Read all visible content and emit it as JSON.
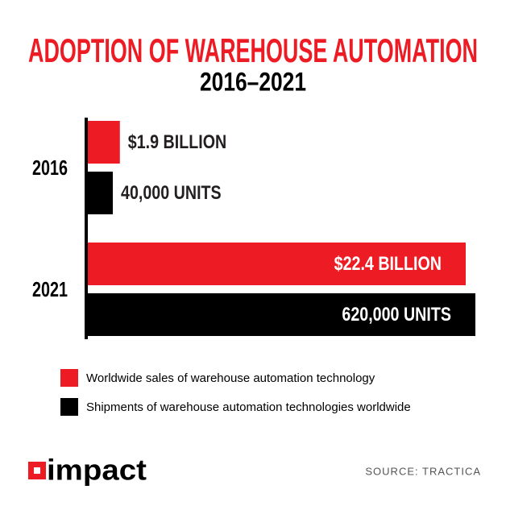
{
  "chart_data": {
    "type": "bar",
    "orientation": "horizontal",
    "title": "ADOPTION OF WAREHOUSE AUTOMATION",
    "subtitle": "2016–2021",
    "categories": [
      "2016",
      "2021"
    ],
    "series": [
      {
        "name": "Worldwide sales of warehouse automation technology",
        "color": "#ed1c24",
        "values": [
          1.9,
          22.4
        ],
        "value_labels": [
          "$1.9 BILLION",
          "$22.4 BILLION"
        ]
      },
      {
        "name": "Shipments of warehouse automation technologies worldwide",
        "color": "#000000",
        "values": [
          40000,
          620000
        ],
        "value_labels": [
          "40,000 UNITS",
          "620,000 UNITS"
        ]
      }
    ],
    "source": "SOURCE: TRACTICA",
    "logo": "impact"
  }
}
